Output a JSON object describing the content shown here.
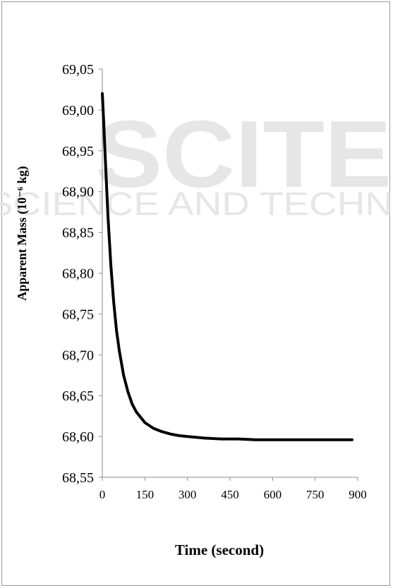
{
  "watermark": {
    "line1": "SCITE",
    "line2": "SCIENCE AND TECHN",
    "color": "#e6e6e6"
  },
  "chart_data": {
    "type": "line",
    "title": "",
    "xlabel": "Time (second)",
    "ylabel": "Apparent Mass (10⁻⁶ kg)",
    "xlim": [
      0,
      900
    ],
    "ylim": [
      68.55,
      69.05
    ],
    "x_ticks": [
      "0",
      "150",
      "300",
      "450",
      "600",
      "750",
      "900"
    ],
    "y_ticks": [
      "68,55",
      "68,60",
      "68,65",
      "68,70",
      "68,75",
      "68,80",
      "68,85",
      "68,90",
      "68,95",
      "69,00",
      "69,05"
    ],
    "grid": false,
    "legend": "none",
    "line_color": "#000000",
    "series": [
      {
        "x": [
          0,
          5,
          10,
          20,
          30,
          40,
          50,
          60,
          75,
          90,
          105,
          120,
          150,
          180,
          210,
          240,
          270,
          300,
          360,
          420,
          480,
          540,
          600,
          660,
          720,
          780,
          840,
          880
        ],
        "values": [
          69.02,
          68.985,
          68.945,
          68.87,
          68.81,
          68.765,
          68.73,
          68.705,
          68.675,
          68.655,
          68.64,
          68.63,
          68.617,
          68.61,
          68.606,
          68.603,
          68.601,
          68.6,
          68.598,
          68.597,
          68.597,
          68.596,
          68.596,
          68.596,
          68.596,
          68.596,
          68.596,
          68.596
        ]
      }
    ]
  }
}
